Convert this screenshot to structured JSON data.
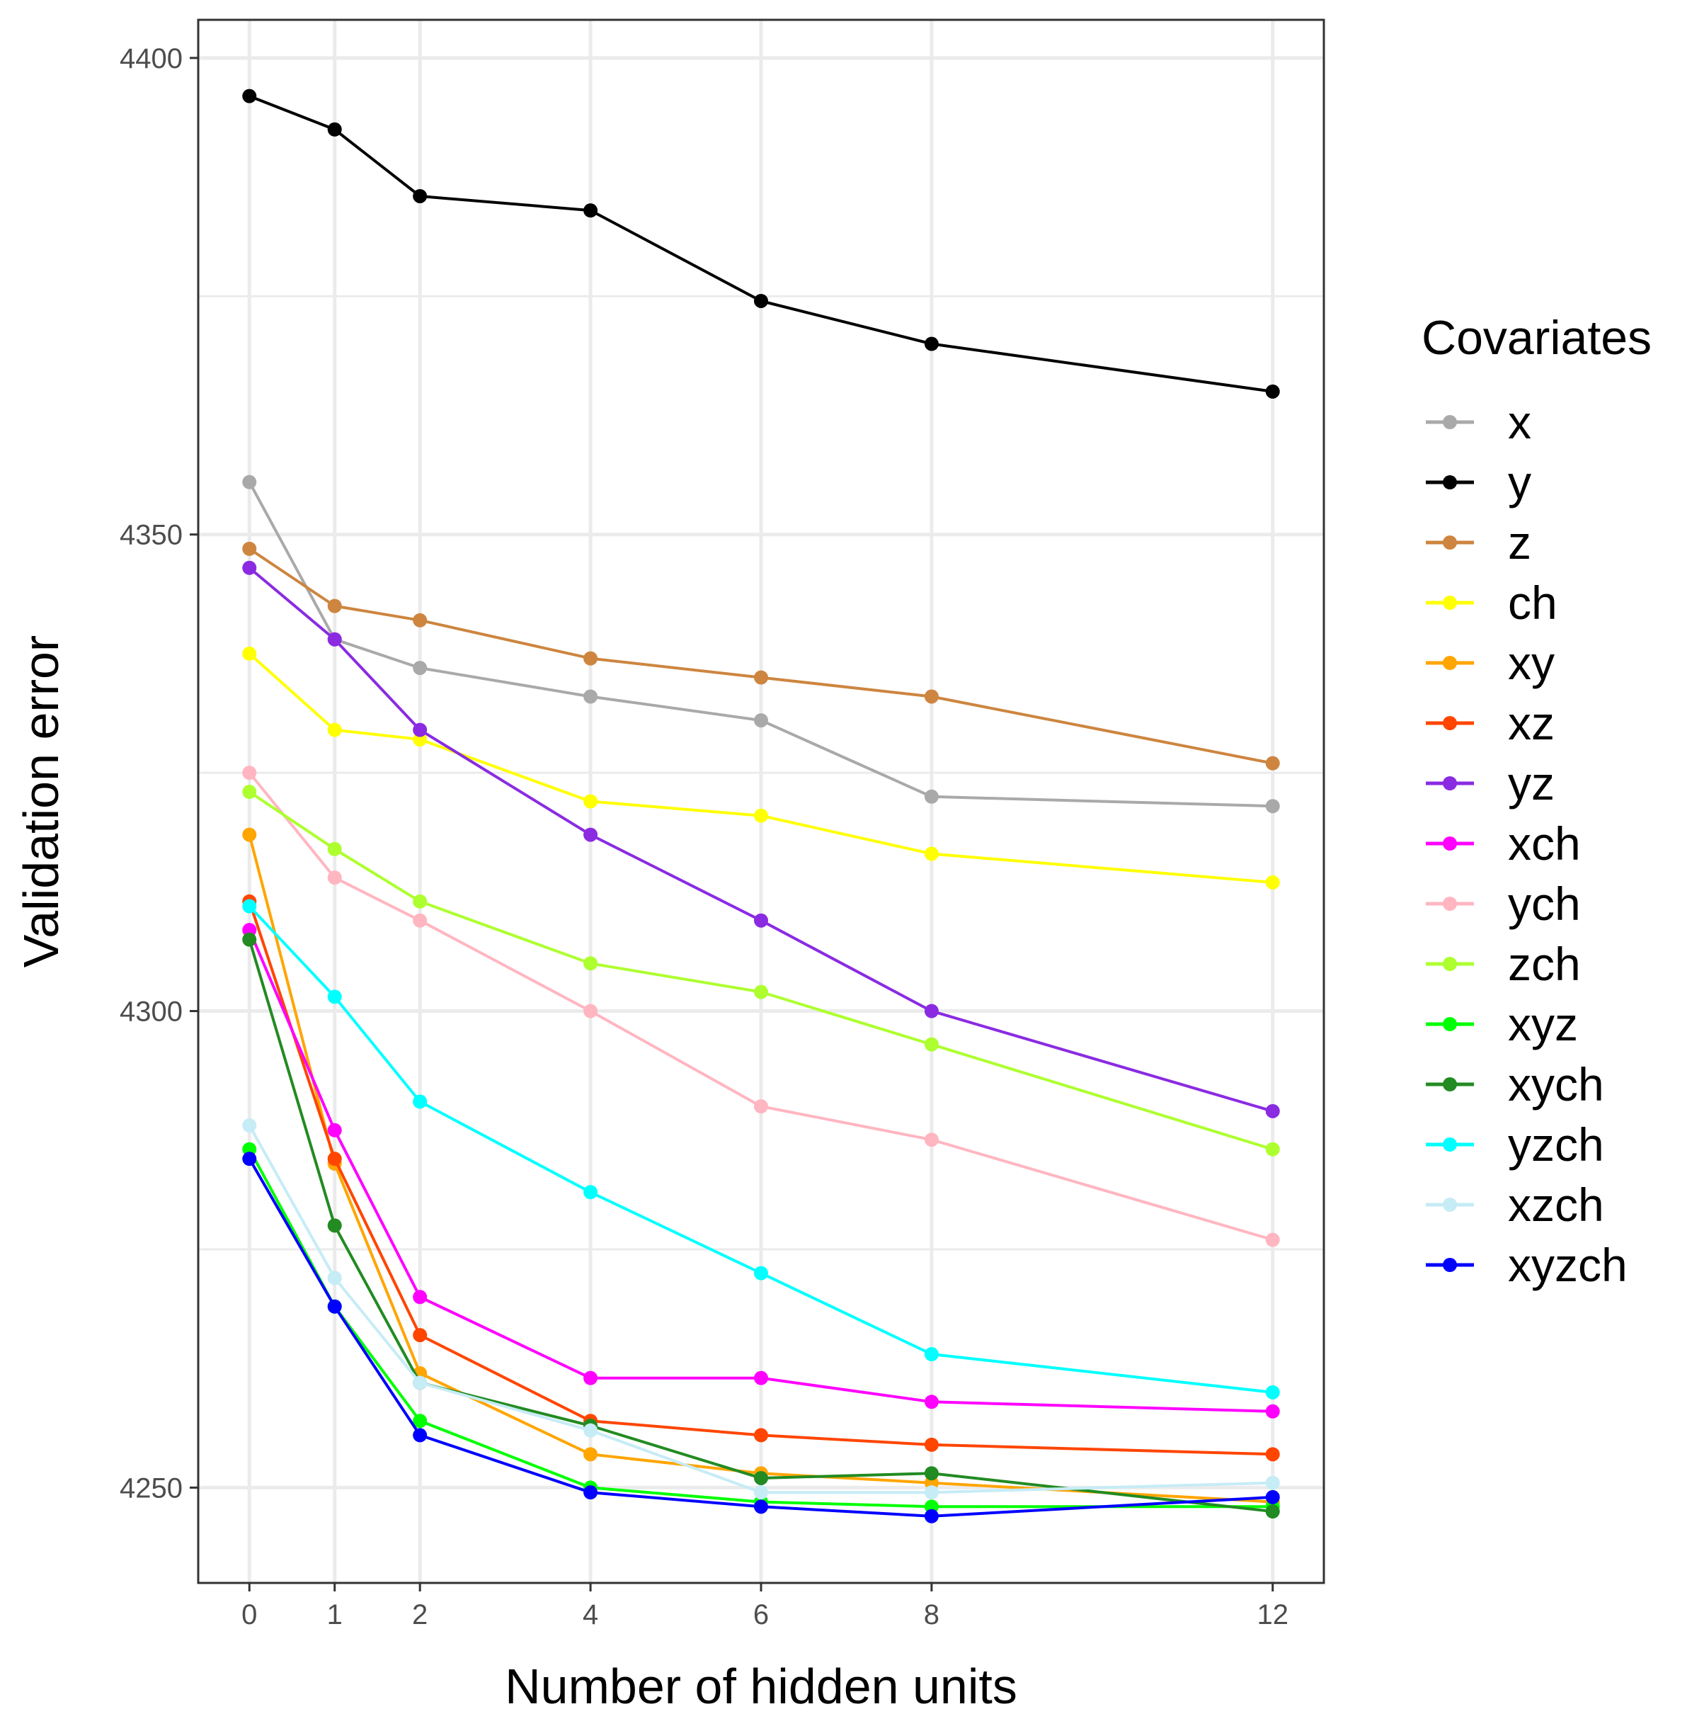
{
  "chart_data": {
    "type": "line",
    "title": "",
    "xlabel": "Number of hidden units",
    "ylabel": "Validation error",
    "x": [
      0,
      1,
      2,
      4,
      6,
      8,
      12
    ],
    "x_ticks": [
      "0",
      "1",
      "2",
      "4",
      "6",
      "8",
      "12"
    ],
    "y_ticks": [
      "4250",
      "4300",
      "4350",
      "4400"
    ],
    "y_tick_values": [
      4250,
      4300,
      4350,
      4400
    ],
    "xlim": [
      -0.6,
      12.6
    ],
    "ylim": [
      4240,
      4404
    ],
    "grid": true,
    "legend_title": "Covariates",
    "legend_position": "right",
    "series": [
      {
        "name": "x",
        "color": "#a9a9a9",
        "values": [
          4355.5,
          4339,
          4336,
          4333,
          4330.5,
          4322.5,
          4321.5
        ]
      },
      {
        "name": "y",
        "color": "#000000",
        "values": [
          4396,
          4392.5,
          4385.5,
          4384,
          4374.5,
          4370,
          4365
        ]
      },
      {
        "name": "z",
        "color": "#cd853f",
        "values": [
          4348.5,
          4342.5,
          4341,
          4337,
          4335,
          4333,
          4326
        ]
      },
      {
        "name": "ch",
        "color": "#ffff00",
        "values": [
          4337.5,
          4329.5,
          4328.5,
          4322,
          4320.5,
          4316.5,
          4313.5
        ]
      },
      {
        "name": "xy",
        "color": "#ffa500",
        "values": [
          4318.5,
          4284,
          4262,
          4253.5,
          4251.5,
          4250.5,
          4248.5
        ]
      },
      {
        "name": "xz",
        "color": "#ff4500",
        "values": [
          4311.5,
          4284.5,
          4266,
          4257,
          4255.5,
          4254.5,
          4253.5
        ]
      },
      {
        "name": "yz",
        "color": "#8a2be2",
        "values": [
          4346.5,
          4339,
          4329.5,
          4318.5,
          4309.5,
          4300,
          4289.5
        ]
      },
      {
        "name": "xch",
        "color": "#ff00ff",
        "values": [
          4308.5,
          4287.5,
          4270,
          4261.5,
          4261.5,
          4259,
          4258
        ]
      },
      {
        "name": "ych",
        "color": "#ffb6c1",
        "values": [
          4325,
          4314,
          4309.5,
          4300,
          4290,
          4286.5,
          4276
        ]
      },
      {
        "name": "zch",
        "color": "#adff2f",
        "values": [
          4323,
          4317,
          4311.5,
          4305,
          4302,
          4296.5,
          4285.5
        ]
      },
      {
        "name": "xyz",
        "color": "#00ff00",
        "values": [
          4285.5,
          4269,
          4257,
          4250,
          4248.5,
          4248,
          4248
        ]
      },
      {
        "name": "xych",
        "color": "#228b22",
        "values": [
          4307.5,
          4277.5,
          4261,
          4256.5,
          4251,
          4251.5,
          4247.5
        ]
      },
      {
        "name": "yzch",
        "color": "#00ffff",
        "values": [
          4311,
          4301.5,
          4290.5,
          4281,
          4272.5,
          4264,
          4260
        ]
      },
      {
        "name": "xzch",
        "color": "#c6ecf6",
        "values": [
          4288,
          4272,
          4261,
          4256,
          4249.5,
          4249.5,
          4250.5
        ]
      },
      {
        "name": "xyzch",
        "color": "#0000ff",
        "values": [
          4284.5,
          4269,
          4255.5,
          4249.5,
          4248,
          4247,
          4249
        ]
      }
    ]
  }
}
